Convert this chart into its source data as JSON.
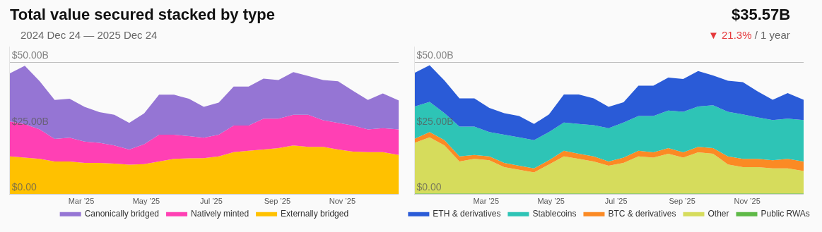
{
  "chart_data": [
    {
      "type": "area",
      "title": "Total value secured stacked by type",
      "subtitle": "2024 Dec 24 — 2025 Dec 24",
      "annotations": [
        "$35.57B",
        "▼ 21.3%",
        "/ 1 year"
      ],
      "stacked": true,
      "grid": "y",
      "legend": "bottom",
      "x": [
        "2024-12-24",
        "2025-01-07",
        "2025-01-21",
        "2025-02-04",
        "2025-02-18",
        "2025-03-04",
        "2025-03-18",
        "2025-04-01",
        "2025-04-15",
        "2025-04-29",
        "2025-05-13",
        "2025-05-27",
        "2025-06-10",
        "2025-06-24",
        "2025-07-08",
        "2025-07-22",
        "2025-08-05",
        "2025-08-19",
        "2025-09-02",
        "2025-09-16",
        "2025-09-30",
        "2025-10-14",
        "2025-10-28",
        "2025-11-11",
        "2025-11-25",
        "2025-12-09",
        "2025-12-24"
      ],
      "xlim": [
        "2024-12-24",
        "2025-12-24"
      ],
      "xticks": [
        {
          "value": "2025-03-01",
          "label": "Mar ’25"
        },
        {
          "value": "2025-05-01",
          "label": "May ’25"
        },
        {
          "value": "2025-07-01",
          "label": "Jul ’25"
        },
        {
          "value": "2025-09-01",
          "label": "Sep ’25"
        },
        {
          "value": "2025-11-01",
          "label": "Nov ’25"
        }
      ],
      "ylim": [
        0,
        56
      ],
      "yticks": [
        {
          "value": 0,
          "label": "$0.00"
        },
        {
          "value": 25,
          "label": "$25.00B"
        },
        {
          "value": 50,
          "label": "$50.00B"
        }
      ],
      "series": [
        {
          "name": "Externally bridged",
          "color": "#ffc100",
          "values": [
            14.3,
            13.8,
            13.3,
            12.3,
            12.3,
            11.8,
            11.8,
            11.5,
            11.1,
            11.3,
            12.3,
            13.3,
            13.5,
            13.6,
            14.3,
            15.9,
            16.4,
            16.9,
            17.4,
            18.4,
            17.9,
            17.9,
            16.9,
            16.1,
            15.9,
            15.9,
            14.8
          ]
        },
        {
          "name": "Natively minted",
          "color": "#ff40b4",
          "values": [
            13.2,
            12.7,
            11.2,
            8.6,
            9.1,
            8.1,
            7.6,
            6.9,
            5.8,
            7.6,
            10.2,
            9.2,
            8.5,
            7.8,
            8.2,
            10.1,
            9.6,
            11.7,
            11.2,
            11.7,
            12.2,
            10.1,
            10.1,
            9.9,
            8.6,
            9.1,
            9.7
          ]
        },
        {
          "name": "Canonically bridged",
          "color": "#9575d4",
          "values": [
            18.3,
            22.2,
            18.3,
            14.8,
            14.8,
            13.2,
            11.7,
            11.7,
            10.1,
            11.7,
            15.2,
            15.2,
            14.2,
            11.7,
            12.2,
            14.8,
            14.8,
            15.2,
            14.7,
            16.2,
            14.7,
            15.3,
            15.8,
            13.2,
            11.2,
            13.2,
            11.0
          ]
        }
      ]
    },
    {
      "type": "area",
      "stacked": true,
      "grid": "y",
      "legend": "bottom",
      "x": [
        "2024-12-24",
        "2025-01-07",
        "2025-01-21",
        "2025-02-04",
        "2025-02-18",
        "2025-03-04",
        "2025-03-18",
        "2025-04-01",
        "2025-04-15",
        "2025-04-29",
        "2025-05-13",
        "2025-05-27",
        "2025-06-10",
        "2025-06-24",
        "2025-07-08",
        "2025-07-22",
        "2025-08-05",
        "2025-08-19",
        "2025-09-02",
        "2025-09-16",
        "2025-09-30",
        "2025-10-14",
        "2025-10-28",
        "2025-11-11",
        "2025-11-25",
        "2025-12-09",
        "2025-12-24"
      ],
      "xlim": [
        "2024-12-24",
        "2025-12-24"
      ],
      "xticks": [
        {
          "value": "2025-03-01",
          "label": "Mar ’25"
        },
        {
          "value": "2025-05-01",
          "label": "May ’25"
        },
        {
          "value": "2025-07-01",
          "label": "Jul ’25"
        },
        {
          "value": "2025-09-01",
          "label": "Sep ’25"
        },
        {
          "value": "2025-11-01",
          "label": "Nov ’25"
        }
      ],
      "ylim": [
        0,
        56
      ],
      "yticks": [
        {
          "value": 0,
          "label": "$0.00"
        },
        {
          "value": 25,
          "label": "$25.00B"
        },
        {
          "value": 50,
          "label": "$50.00B"
        }
      ],
      "series": [
        {
          "name": "Public RWAs",
          "color": "#5eb947",
          "values": [
            0.2,
            0.2,
            0.2,
            0.2,
            0.2,
            0.2,
            0.2,
            0.2,
            0.2,
            0.2,
            0.2,
            0.2,
            0.2,
            0.2,
            0.2,
            0.2,
            0.2,
            0.2,
            0.2,
            0.2,
            0.2,
            0.2,
            0.2,
            0.2,
            0.2,
            0.2,
            0.2
          ]
        },
        {
          "name": "Other",
          "color": "#d6dc5c",
          "values": [
            19.2,
            21.3,
            18.2,
            12.1,
            13.1,
            12.6,
            10.0,
            9.0,
            8.0,
            11.0,
            14.1,
            13.1,
            12.1,
            10.5,
            11.6,
            14.1,
            13.6,
            15.1,
            13.6,
            15.6,
            15.1,
            11.0,
            10.0,
            10.0,
            9.5,
            9.5,
            8.5
          ]
        },
        {
          "name": "BTC & derivatives",
          "color": "#fb8a24",
          "values": [
            1.6,
            2.0,
            2.0,
            2.0,
            1.5,
            1.5,
            1.6,
            1.5,
            1.5,
            1.6,
            2.1,
            2.0,
            2.0,
            1.6,
            2.0,
            2.1,
            2.0,
            2.1,
            2.0,
            2.1,
            2.1,
            3.1,
            3.1,
            3.1,
            3.1,
            3.6,
            3.6
          ]
        },
        {
          "name": "Stablecoins",
          "color": "#2ec4b6",
          "values": [
            12.2,
            11.5,
            10.3,
            11.3,
            10.8,
            9.2,
            10.7,
            10.8,
            10.7,
            10.7,
            10.7,
            11.3,
            11.8,
            12.7,
            13.3,
            13.2,
            13.8,
            14.3,
            15.4,
            15.3,
            16.3,
            16.9,
            16.9,
            15.8,
            15.3,
            15.3,
            15.8
          ]
        },
        {
          "name": "ETH & derivatives",
          "color": "#2a5bd7",
          "values": [
            12.8,
            13.9,
            12.4,
            10.7,
            10.7,
            9.2,
            8.2,
            8.1,
            6.2,
            6.7,
            10.7,
            11.2,
            10.2,
            8.1,
            7.7,
            11.5,
            11.5,
            12.5,
            12.5,
            13.5,
            11.3,
            11.8,
            12.3,
            9.8,
            7.7,
            9.7,
            7.7
          ]
        }
      ]
    }
  ]
}
